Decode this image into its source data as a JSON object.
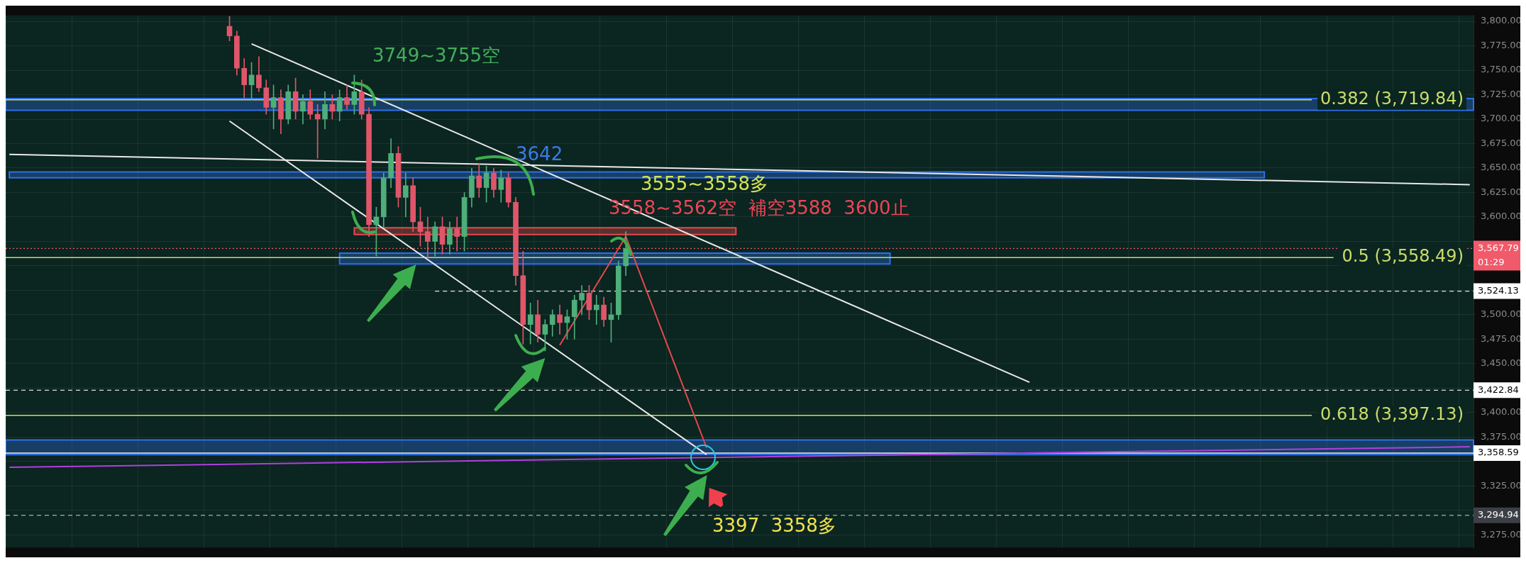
{
  "chart_data": {
    "type": "candlestick",
    "categories": [
      null,
      null,
      null,
      null,
      null,
      null,
      null,
      null,
      null,
      null,
      null,
      null,
      null,
      null,
      null,
      null,
      null,
      null,
      null,
      null,
      null,
      null,
      null,
      null,
      null,
      null,
      null,
      null,
      null,
      null,
      null,
      null,
      null,
      null,
      null,
      null,
      null,
      null,
      null,
      null,
      null,
      null,
      null,
      null,
      null,
      null,
      null,
      null,
      null,
      null,
      null,
      null,
      null,
      null,
      null,
      null,
      null,
      null,
      null,
      null,
      null,
      null,
      null,
      null,
      null,
      null,
      null,
      null,
      null,
      null,
      null,
      null,
      null,
      null,
      null,
      null,
      null,
      null,
      null,
      null,
      null,
      null,
      null,
      null,
      null,
      null,
      null,
      null,
      null,
      null,
      null,
      null,
      null,
      null,
      null,
      null,
      null,
      null,
      null,
      null,
      null,
      null,
      null,
      null,
      null,
      null,
      null,
      null,
      null,
      null,
      null,
      null,
      null,
      null,
      null,
      null,
      null,
      null,
      null,
      null,
      null,
      null,
      null,
      null,
      null,
      null,
      null,
      null,
      null,
      null,
      null,
      null,
      null,
      null,
      null,
      null,
      null,
      null,
      null,
      null,
      null,
      null,
      null,
      null,
      null,
      null,
      null,
      null,
      null,
      null,
      null,
      null,
      null,
      null,
      null,
      null,
      null,
      null,
      null,
      null,
      null,
      null,
      null,
      null,
      null,
      null,
      null,
      null,
      null,
      null,
      null,
      null,
      null,
      null,
      null,
      null,
      null,
      null,
      null,
      null,
      null,
      null,
      null,
      null,
      null,
      null,
      null,
      null,
      null,
      null,
      null,
      null,
      null,
      null,
      null,
      null,
      null,
      null,
      null,
      null
    ],
    "ohlc": [
      null,
      null,
      null,
      null,
      null,
      null,
      null,
      null,
      null,
      null,
      null,
      null,
      null,
      null,
      null,
      null,
      null,
      null,
      null,
      null,
      null,
      null,
      null,
      null,
      null,
      null,
      null,
      null,
      null,
      null,
      [
        3795,
        3805,
        3780,
        3785
      ],
      [
        3785,
        3790,
        3745,
        3752
      ],
      [
        3752,
        3762,
        3722,
        3735
      ],
      [
        3735,
        3758,
        3720,
        3745
      ],
      [
        3745,
        3764,
        3728,
        3732
      ],
      [
        3732,
        3740,
        3705,
        3712
      ],
      [
        3712,
        3735,
        3690,
        3722
      ],
      [
        3722,
        3730,
        3685,
        3700
      ],
      [
        3700,
        3735,
        3695,
        3728
      ],
      [
        3728,
        3742,
        3700,
        3708
      ],
      [
        3708,
        3725,
        3695,
        3718
      ],
      [
        3718,
        3730,
        3700,
        3705
      ],
      [
        3705,
        3715,
        3660,
        3700
      ],
      [
        3700,
        3728,
        3690,
        3715
      ],
      [
        3715,
        3725,
        3700,
        3708
      ],
      [
        3708,
        3730,
        3698,
        3722
      ],
      [
        3722,
        3735,
        3710,
        3715
      ],
      [
        3715,
        3745,
        3705,
        3728
      ],
      [
        3728,
        3740,
        3700,
        3705
      ],
      [
        3705,
        3712,
        3580,
        3592
      ],
      [
        3592,
        3610,
        3560,
        3600
      ],
      [
        3600,
        3645,
        3590,
        3640
      ],
      [
        3640,
        3680,
        3630,
        3665
      ],
      [
        3665,
        3672,
        3610,
        3620
      ],
      [
        3620,
        3645,
        3600,
        3632
      ],
      [
        3632,
        3640,
        3585,
        3595
      ],
      [
        3595,
        3610,
        3570,
        3585
      ],
      [
        3585,
        3600,
        3557,
        3575
      ],
      [
        3575,
        3595,
        3560,
        3590
      ],
      [
        3590,
        3600,
        3562,
        3572
      ],
      [
        3572,
        3595,
        3562,
        3588
      ],
      [
        3588,
        3600,
        3565,
        3580
      ],
      [
        3580,
        3625,
        3565,
        3620
      ],
      [
        3620,
        3650,
        3610,
        3642
      ],
      [
        3642,
        3655,
        3620,
        3630
      ],
      [
        3630,
        3652,
        3615,
        3645
      ],
      [
        3645,
        3650,
        3620,
        3628
      ],
      [
        3628,
        3648,
        3615,
        3640
      ],
      [
        3640,
        3645,
        3610,
        3615
      ],
      [
        3615,
        3620,
        3530,
        3540
      ],
      [
        3540,
        3565,
        3470,
        3490
      ],
      [
        3490,
        3512,
        3470,
        3500
      ],
      [
        3500,
        3515,
        3472,
        3480
      ],
      [
        3480,
        3495,
        3463,
        3490
      ],
      [
        3490,
        3505,
        3478,
        3500
      ],
      [
        3500,
        3510,
        3480,
        3492
      ],
      [
        3492,
        3505,
        3475,
        3498
      ],
      [
        3498,
        3520,
        3475,
        3515
      ],
      [
        3515,
        3530,
        3500,
        3522
      ],
      [
        3522,
        3530,
        3495,
        3505
      ],
      [
        3505,
        3520,
        3490,
        3510
      ],
      [
        3510,
        3518,
        3488,
        3495
      ],
      [
        3495,
        3512,
        3472,
        3500
      ],
      [
        3500,
        3555,
        3495,
        3550
      ],
      [
        3550,
        3585,
        3540,
        3567.79
      ],
      null,
      null,
      null,
      null,
      null,
      null,
      null,
      null,
      null,
      null,
      null,
      null,
      null,
      null,
      null,
      null,
      null,
      null,
      null,
      null,
      null,
      null,
      null,
      null,
      null,
      null,
      null,
      null,
      null,
      null,
      null,
      null,
      null,
      null,
      null,
      null,
      null,
      null,
      null,
      null,
      null,
      null,
      null,
      null,
      null,
      null,
      null,
      null,
      null,
      null,
      null,
      null,
      null,
      null,
      null,
      null,
      null,
      null,
      null,
      null,
      null,
      null,
      null,
      null,
      null,
      null,
      null,
      null,
      null,
      null,
      null,
      null,
      null,
      null,
      null,
      null,
      null,
      null,
      null,
      null,
      null,
      null,
      null,
      null,
      null,
      null,
      null,
      null,
      null,
      null,
      null,
      null,
      null,
      null,
      null,
      null,
      null,
      null,
      null,
      null,
      null,
      null,
      null,
      null,
      null,
      null,
      null,
      null,
      null,
      null,
      null,
      null,
      null,
      null,
      null
    ],
    "series": [
      {
        "type": "line",
        "color": "#e8e8e8",
        "values": [
          null,
          null,
          null,
          null,
          null,
          null,
          null,
          null,
          null,
          null,
          null,
          null,
          null,
          null,
          null,
          null,
          null,
          null,
          null,
          null,
          null,
          null,
          null,
          null,
          null,
          null,
          null,
          null,
          null,
          null,
          null,
          null,
          null,
          3777,
          null,
          null,
          null,
          null,
          null,
          null,
          null,
          null,
          null,
          null,
          null,
          null,
          null,
          null,
          null,
          null,
          null,
          null,
          null,
          null,
          null,
          null,
          null,
          null,
          null,
          null,
          null,
          null,
          null,
          null,
          null,
          null,
          null,
          null,
          null,
          null,
          null,
          null,
          null,
          null,
          null,
          null,
          null,
          null,
          null,
          null,
          null,
          null,
          null,
          null,
          null,
          null,
          null,
          null,
          null,
          null,
          null,
          null,
          null,
          null,
          null,
          null,
          null,
          null,
          null,
          null,
          null,
          null,
          null,
          null,
          null,
          null,
          null,
          null,
          null,
          null,
          null,
          null,
          null,
          null,
          null,
          null,
          null,
          null,
          null,
          null,
          null,
          null,
          null,
          null,
          null,
          null,
          null,
          null,
          null,
          null,
          null,
          null,
          null,
          null,
          null,
          null,
          null,
          null,
          null,
          3431,
          null,
          null,
          null,
          null,
          null,
          null,
          null,
          null,
          null,
          null,
          null,
          null,
          null,
          null,
          null,
          null,
          null,
          null,
          null,
          null,
          null,
          null,
          null,
          null,
          null,
          null,
          null,
          null,
          null,
          null,
          null,
          null,
          null,
          null,
          null,
          null,
          null,
          null,
          null,
          null,
          null,
          null,
          null,
          null,
          null,
          null,
          null,
          null,
          null,
          null,
          null,
          null,
          null,
          null,
          null,
          null,
          null,
          null,
          null,
          null
        ]
      },
      {
        "type": "line",
        "color": "#e8e8e8",
        "values": [
          null,
          null,
          null,
          null,
          null,
          null,
          null,
          null,
          null,
          null,
          null,
          null,
          null,
          null,
          null,
          null,
          null,
          null,
          null,
          null,
          null,
          null,
          null,
          null,
          null,
          null,
          null,
          null,
          null,
          null,
          3698,
          null,
          null,
          null,
          null,
          null,
          null,
          null,
          null,
          null,
          null,
          null,
          null,
          null,
          null,
          null,
          null,
          null,
          null,
          null,
          null,
          null,
          null,
          null,
          null,
          null,
          null,
          null,
          null,
          null,
          null,
          null,
          null,
          null,
          null,
          null,
          null,
          null,
          null,
          null,
          null,
          null,
          null,
          null,
          null,
          null,
          null,
          null,
          null,
          null,
          null,
          null,
          null,
          null,
          null,
          null,
          null,
          null,
          null,
          null,
          null,
          null,
          null,
          null,
          null,
          3357,
          null,
          null,
          null,
          null,
          null,
          null,
          null,
          null,
          null,
          null,
          null,
          null,
          null,
          null,
          null,
          null,
          null,
          null,
          null,
          null,
          null,
          null,
          null,
          null,
          null,
          null,
          null,
          null,
          null,
          null,
          null,
          null,
          null,
          null,
          null,
          null,
          null,
          null,
          null,
          null,
          null,
          null,
          null,
          null,
          null,
          null,
          null,
          null,
          null,
          null,
          null,
          null,
          null,
          null,
          null,
          null,
          null,
          null,
          null,
          null,
          null,
          null,
          null,
          null,
          null,
          null,
          null,
          null,
          null,
          null,
          null,
          null,
          null,
          null,
          null,
          null,
          null,
          null,
          null,
          null,
          null,
          null,
          null,
          null,
          null,
          null,
          null,
          null,
          null,
          null,
          null,
          null,
          null,
          null,
          null,
          null,
          null,
          null,
          null,
          null,
          null,
          null,
          null,
          null
        ]
      },
      {
        "type": "line",
        "color": "#e8e8e8",
        "values": [
          3664,
          null,
          null,
          null,
          null,
          null,
          null,
          null,
          null,
          null,
          null,
          null,
          null,
          null,
          null,
          null,
          null,
          null,
          null,
          null,
          null,
          null,
          null,
          null,
          null,
          null,
          null,
          null,
          null,
          null,
          null,
          null,
          null,
          null,
          null,
          null,
          null,
          null,
          null,
          null,
          null,
          null,
          null,
          null,
          null,
          null,
          null,
          null,
          null,
          null,
          null,
          null,
          null,
          null,
          null,
          null,
          null,
          null,
          null,
          null,
          null,
          null,
          null,
          null,
          null,
          null,
          null,
          null,
          null,
          null,
          null,
          null,
          null,
          null,
          null,
          null,
          null,
          null,
          null,
          null,
          null,
          null,
          null,
          null,
          null,
          null,
          null,
          null,
          null,
          null,
          null,
          null,
          null,
          null,
          null,
          null,
          null,
          null,
          null,
          null,
          null,
          null,
          null,
          null,
          null,
          null,
          null,
          null,
          null,
          null,
          null,
          null,
          null,
          null,
          null,
          null,
          null,
          null,
          null,
          null,
          null,
          null,
          null,
          null,
          null,
          null,
          null,
          null,
          null,
          null,
          null,
          null,
          null,
          null,
          null,
          null,
          null,
          null,
          null,
          null,
          null,
          null,
          null,
          null,
          null,
          null,
          null,
          null,
          null,
          null,
          null,
          null,
          null,
          null,
          null,
          null,
          null,
          null,
          null,
          null,
          null,
          null,
          null,
          null,
          null,
          null,
          null,
          null,
          null,
          null,
          null,
          null,
          null,
          null,
          null,
          null,
          null,
          null,
          null,
          null,
          null,
          null,
          null,
          null,
          null,
          null,
          null,
          null,
          null,
          null,
          null,
          null,
          null,
          null,
          null,
          null,
          null,
          null,
          null,
          3633
        ]
      },
      {
        "type": "line",
        "color": "#b03fe0",
        "values": [
          3344,
          null,
          null,
          null,
          null,
          null,
          null,
          null,
          null,
          null,
          null,
          null,
          null,
          null,
          null,
          null,
          null,
          null,
          null,
          null,
          null,
          null,
          null,
          null,
          null,
          null,
          null,
          null,
          null,
          null,
          null,
          null,
          null,
          null,
          null,
          null,
          null,
          null,
          null,
          null,
          null,
          null,
          null,
          null,
          null,
          null,
          null,
          null,
          null,
          null,
          null,
          null,
          null,
          null,
          null,
          null,
          null,
          null,
          null,
          null,
          null,
          null,
          null,
          null,
          null,
          null,
          null,
          null,
          null,
          null,
          null,
          null,
          null,
          null,
          null,
          null,
          null,
          null,
          null,
          null,
          null,
          null,
          null,
          null,
          null,
          null,
          null,
          null,
          null,
          null,
          null,
          null,
          null,
          null,
          null,
          null,
          null,
          null,
          null,
          null,
          null,
          null,
          null,
          null,
          null,
          null,
          null,
          null,
          null,
          null,
          null,
          null,
          null,
          null,
          null,
          null,
          null,
          null,
          null,
          null,
          null,
          null,
          null,
          null,
          null,
          null,
          null,
          null,
          null,
          null,
          null,
          null,
          null,
          null,
          null,
          null,
          null,
          null,
          null,
          null,
          null,
          null,
          null,
          null,
          null,
          null,
          null,
          null,
          null,
          null,
          null,
          null,
          null,
          null,
          null,
          null,
          null,
          null,
          null,
          null,
          null,
          null,
          null,
          null,
          null,
          null,
          null,
          null,
          null,
          null,
          null,
          null,
          null,
          null,
          null,
          null,
          null,
          null,
          null,
          null,
          null,
          null,
          null,
          null,
          null,
          null,
          null,
          null,
          null,
          null,
          null,
          null,
          null,
          null,
          null,
          null,
          null,
          null,
          null,
          3365
        ]
      },
      {
        "type": "line",
        "color": "#e5484d",
        "values": [
          null,
          null,
          null,
          null,
          null,
          null,
          null,
          null,
          null,
          null,
          null,
          null,
          null,
          null,
          null,
          null,
          null,
          null,
          null,
          null,
          null,
          null,
          null,
          null,
          null,
          null,
          null,
          null,
          null,
          null,
          null,
          null,
          null,
          null,
          null,
          null,
          null,
          null,
          null,
          null,
          null,
          null,
          null,
          null,
          null,
          null,
          null,
          null,
          null,
          null,
          null,
          null,
          null,
          null,
          null,
          null,
          null,
          null,
          null,
          null,
          null,
          null,
          null,
          null,
          null,
          null,
          null,
          null,
          null,
          null,
          null,
          null,
          null,
          null,
          null,
          3469,
          null,
          null,
          null,
          null,
          null,
          null,
          null,
          null,
          3580,
          null,
          null,
          null,
          null,
          null,
          null,
          null,
          null,
          null,
          null,
          3364,
          null,
          null,
          null,
          null,
          null,
          null,
          null,
          null,
          null,
          null,
          null,
          null,
          null,
          null,
          null,
          null,
          null,
          null,
          null,
          null,
          null,
          null,
          null,
          null,
          null,
          null,
          null,
          null,
          null,
          null,
          null,
          null,
          null,
          null,
          null,
          null,
          null,
          null,
          null,
          null,
          null,
          null,
          null,
          null,
          null,
          null,
          null,
          null,
          null,
          null,
          null,
          null,
          null,
          null,
          null,
          null,
          null,
          null,
          null,
          null,
          null,
          null,
          null,
          null,
          null,
          null,
          null,
          null,
          null,
          null,
          null,
          null,
          null,
          null,
          null,
          null,
          null,
          null,
          null,
          null,
          null,
          null,
          null,
          null,
          null,
          null,
          null,
          null,
          null,
          null,
          null,
          null,
          null,
          null,
          null,
          null,
          null,
          null,
          null,
          null,
          null,
          null,
          null,
          null
        ]
      }
    ],
    "ylim": [
      3262,
      3806
    ],
    "yticks": [
      {
        "value": 3275,
        "label": "3,275.00"
      },
      {
        "value": 3300,
        "label": null
      },
      {
        "value": 3325,
        "label": "3,325.00"
      },
      {
        "value": 3350,
        "label": null
      },
      {
        "value": 3375,
        "label": "3,375.00"
      },
      {
        "value": 3400,
        "label": "3,400.00"
      },
      {
        "value": 3425,
        "label": null
      },
      {
        "value": 3450,
        "label": "3,450.00"
      },
      {
        "value": 3475,
        "label": "3,475.00"
      },
      {
        "value": 3500,
        "label": "3,500.00"
      },
      {
        "value": 3525,
        "label": null
      },
      {
        "value": 3550,
        "label": null
      },
      {
        "value": 3575,
        "label": null
      },
      {
        "value": 3600,
        "label": "3,600.00"
      },
      {
        "value": 3625,
        "label": "3,625.00"
      },
      {
        "value": 3650,
        "label": "3,650.00"
      },
      {
        "value": 3675,
        "label": "3,675.00"
      },
      {
        "value": 3700,
        "label": "3,700.00"
      },
      {
        "value": 3725,
        "label": "3,725.00"
      },
      {
        "value": 3750,
        "label": "3,750.00"
      },
      {
        "value": 3775,
        "label": "3,775.00"
      },
      {
        "value": 3800,
        "label": "3,800.00"
      }
    ],
    "ref_lines": [
      {
        "axis": "y",
        "value": 3719.84,
        "label": "0.382 (3,719.84)",
        "color": "#c9dc6c",
        "line_style": "solid"
      },
      {
        "axis": "y",
        "value": 3558.49,
        "label": "0.5 (3,558.49)",
        "color": "#c9dc6c",
        "line_style": "solid"
      },
      {
        "axis": "y",
        "value": 3397.13,
        "label": "0.618 (3,397.13)",
        "color": "#c9dc6c",
        "line_style": "solid"
      },
      {
        "axis": "y",
        "value": 3567.79,
        "label": "3,567.79",
        "color": "#f05a6a",
        "line_style": "dotted"
      },
      {
        "axis": "y",
        "value": 3524.13,
        "label": "3,524.13",
        "color": "#e0e0e0",
        "line_style": "dashed"
      },
      {
        "axis": "y",
        "value": 3422.84,
        "label": "3,422.84",
        "color": "#e0e0e0",
        "line_style": "dashed"
      },
      {
        "axis": "y",
        "value": 3358.59,
        "label": "3,358.59",
        "color": "#f0f0f0",
        "line_style": "solid"
      },
      {
        "axis": "y",
        "value": 3294.94,
        "label": "3,294.94",
        "color": "#d0d0d0",
        "line_style": "dashed"
      }
    ],
    "bands": [
      {
        "axis": "y",
        "from": 3709,
        "to": 3721,
        "color": "#2f6fe8"
      },
      {
        "axis": "y",
        "from": 3640,
        "to": 3646,
        "color": "#2f6fe8"
      },
      {
        "axis": "y",
        "from": 3582,
        "to": 3589,
        "color": "#e5484d"
      },
      {
        "axis": "y",
        "from": 3552,
        "to": 3563,
        "color": "#2f6fe8"
      },
      {
        "axis": "y",
        "from": 3357,
        "to": 3372,
        "color": "#2f6fe8"
      }
    ],
    "annotations": [
      "3749~3755空",
      "3642",
      "3555~3558多",
      "3558~3562空  補空3588  3600止",
      "3397  3358多",
      "01:29"
    ],
    "grid": true,
    "legend": false,
    "tick_labels": "y"
  }
}
